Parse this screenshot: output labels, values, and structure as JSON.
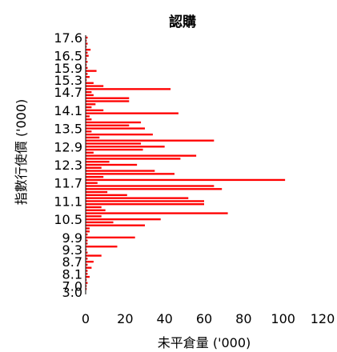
{
  "chart_data": {
    "type": "bar",
    "orientation": "horizontal",
    "title": "認購",
    "xlabel": "未平倉量 ('000)",
    "ylabel": "指數行使價 ('000)",
    "xlim": [
      0,
      120
    ],
    "x_ticks": [
      "0",
      "20",
      "40",
      "60",
      "80",
      "100",
      "120"
    ],
    "ylim": [
      3.0,
      17.6
    ],
    "y_ticks": [
      "17.6",
      "16.5",
      "15.9",
      "15.3",
      "14.7",
      "14.1",
      "13.5",
      "12.9",
      "12.3",
      "11.7",
      "11.1",
      "10.5",
      "9.9",
      "9.3",
      "8.7",
      "8.1",
      "7.0",
      "3.0"
    ],
    "bar_color": "#ff0000",
    "grid": false,
    "legend": "none",
    "series": [
      {
        "strike": [
          "17.6",
          "17.4",
          "17.2",
          "17.0",
          "16.8",
          "16.6",
          "16.5",
          "16.4",
          "16.2",
          "16.0",
          "15.9",
          "15.8",
          "15.6",
          "15.4",
          "15.3",
          "15.2",
          "15.0",
          "14.8",
          "14.7",
          "14.6",
          "14.5",
          "14.4",
          "14.3",
          "14.2",
          "14.1",
          "14.0",
          "13.9",
          "13.8",
          "13.7",
          "13.6",
          "13.5",
          "13.4",
          "13.3",
          "13.2",
          "13.1",
          "13.0",
          "12.9",
          "12.8",
          "12.7",
          "12.6",
          "12.5",
          "12.4",
          "12.3",
          "12.2",
          "12.1",
          "12.0",
          "11.9",
          "11.8",
          "11.7",
          "11.6",
          "11.5",
          "11.4",
          "11.3",
          "11.2",
          "11.1",
          "11.0",
          "10.9",
          "10.8",
          "10.7",
          "10.6",
          "10.5",
          "10.4",
          "10.3",
          "10.2",
          "10.1",
          "10.0",
          "9.9",
          "9.8",
          "9.6",
          "9.4",
          "9.3",
          "9.2",
          "9.0",
          "8.8",
          "8.7",
          "8.6",
          "8.4",
          "8.2",
          "8.1",
          "8.0",
          "7.8",
          "7.5",
          "7.0",
          "6.5",
          "3.0"
        ],
        "values": [
          1,
          0.5,
          1,
          0.5,
          2.5,
          1,
          1.5,
          0.5,
          1,
          0.5,
          1,
          5.5,
          1,
          2,
          0.5,
          4,
          9,
          43,
          3,
          4,
          22,
          22,
          5,
          3,
          9,
          47,
          2,
          3,
          28,
          22,
          30,
          3,
          34,
          7,
          65,
          28,
          40,
          29,
          4,
          56,
          48,
          12,
          26,
          8,
          35,
          45,
          9,
          101,
          6,
          65,
          69,
          11,
          21,
          52,
          60,
          60,
          8,
          10,
          72,
          8,
          38,
          14,
          30,
          2,
          2,
          1,
          25,
          1,
          1,
          16,
          0.5,
          1,
          8,
          1,
          4,
          1,
          3,
          1,
          1,
          2,
          0.5,
          1,
          0.5,
          0.5,
          0
        ]
      }
    ]
  }
}
